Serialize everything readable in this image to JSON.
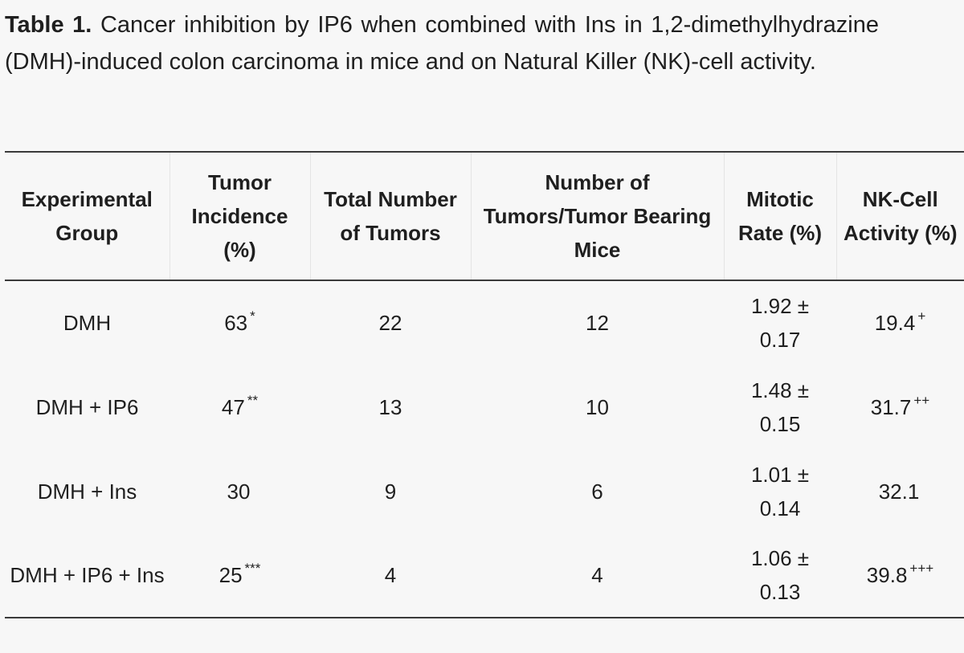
{
  "caption": {
    "label": "Table 1.",
    "text": "Cancer inhibition by IP6 when combined with Ins in 1,2-dimethylhydrazine (DMH)-induced colon carcinoma in mice and on Natural Killer (NK)-cell activity."
  },
  "table": {
    "headers": [
      "Experimental Group",
      "Tumor Incidence (%)",
      "Total Number of Tumors",
      "Number of Tumors/Tumor Bearing Mice",
      "Mitotic Rate (%)",
      "NK-Cell Activity (%)"
    ],
    "rows": [
      {
        "group": "DMH",
        "incidence": "63",
        "incidence_mark": "*",
        "total": "22",
        "per_mouse": "12",
        "mitotic": "1.92 ± 0.17",
        "nk": "19.4",
        "nk_mark": "+"
      },
      {
        "group": "DMH + IP6",
        "incidence": "47",
        "incidence_mark": "**",
        "total": "13",
        "per_mouse": "10",
        "mitotic": "1.48 ± 0.15",
        "nk": "31.7",
        "nk_mark": "++"
      },
      {
        "group": "DMH + Ins",
        "incidence": "30",
        "incidence_mark": "",
        "total": "9",
        "per_mouse": "6",
        "mitotic": "1.01 ± 0.14",
        "nk": "32.1",
        "nk_mark": ""
      },
      {
        "group": "DMH + IP6 + Ins",
        "incidence": "25",
        "incidence_mark": "***",
        "total": "4",
        "per_mouse": "4",
        "mitotic": "1.06 ± 0.13",
        "nk": "39.8",
        "nk_mark": "+++"
      }
    ]
  }
}
